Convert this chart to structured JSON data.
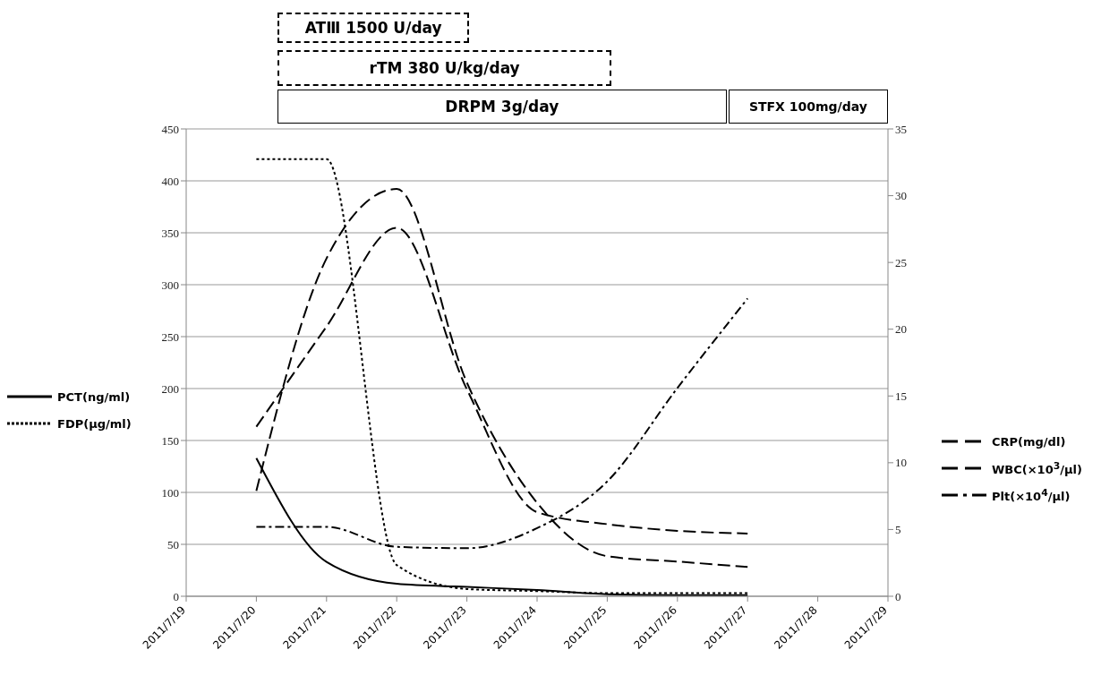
{
  "chart_data": {
    "type": "line",
    "categories": [
      "2011/7/19",
      "2011/7/20",
      "2011/7/21",
      "2011/7/22",
      "2011/7/23",
      "2011/7/24",
      "2011/7/25",
      "2011/7/26",
      "2011/7/27",
      "2011/7/28",
      "2011/7/29"
    ],
    "series": [
      {
        "name": "PCT(ng/ml)",
        "color": "#000000",
        "line_style": "solid",
        "values": [
          null,
          133,
          33,
          12,
          9,
          6,
          2,
          1,
          1,
          null,
          null
        ]
      },
      {
        "name": "FDP(μg/ml)",
        "color": "#000000",
        "line_style": "dotted",
        "values": [
          null,
          421,
          421,
          30,
          7,
          5,
          3,
          3,
          3,
          null,
          null
        ]
      },
      {
        "name": "CRP(mg/dl)",
        "color": "#000000",
        "line_style": "dashed",
        "axis": "y2",
        "values": [
          null,
          7.9,
          25.3,
          30.5,
          16,
          7,
          3,
          2.6,
          2.2,
          null,
          null
        ]
      },
      {
        "name": "WBC(×10$^{3}$/μl)",
        "color": "#000000",
        "line_style": "dashed",
        "axis": "y2",
        "values": [
          null,
          12.7,
          20.2,
          27.6,
          15.5,
          6.3,
          5.4,
          4.9,
          4.7,
          null,
          null
        ]
      },
      {
        "name": "Plt(×10$^{4}$/μl)",
        "color": "#000000",
        "line_style": "dashdot",
        "axis": "y2",
        "values": [
          null,
          5.2,
          5.2,
          3.7,
          3.6,
          5.1,
          8.6,
          15.6,
          22.3,
          null,
          null
        ]
      }
    ],
    "ylim": [
      0,
      450
    ],
    "yticks": [
      0,
      50,
      100,
      150,
      200,
      250,
      300,
      350,
      400,
      450
    ],
    "y2lim": [
      0,
      35
    ],
    "y2ticks": [
      0,
      5,
      10,
      15,
      20,
      25,
      30,
      35
    ],
    "grid": "y",
    "legend": "right",
    "marker": "none",
    "annotations": [
      "ATⅢ 1500 U/day",
      "rTM 380 U/kg/day",
      "DRPM 3g/day",
      "STFX 100mg/day"
    ]
  }
}
